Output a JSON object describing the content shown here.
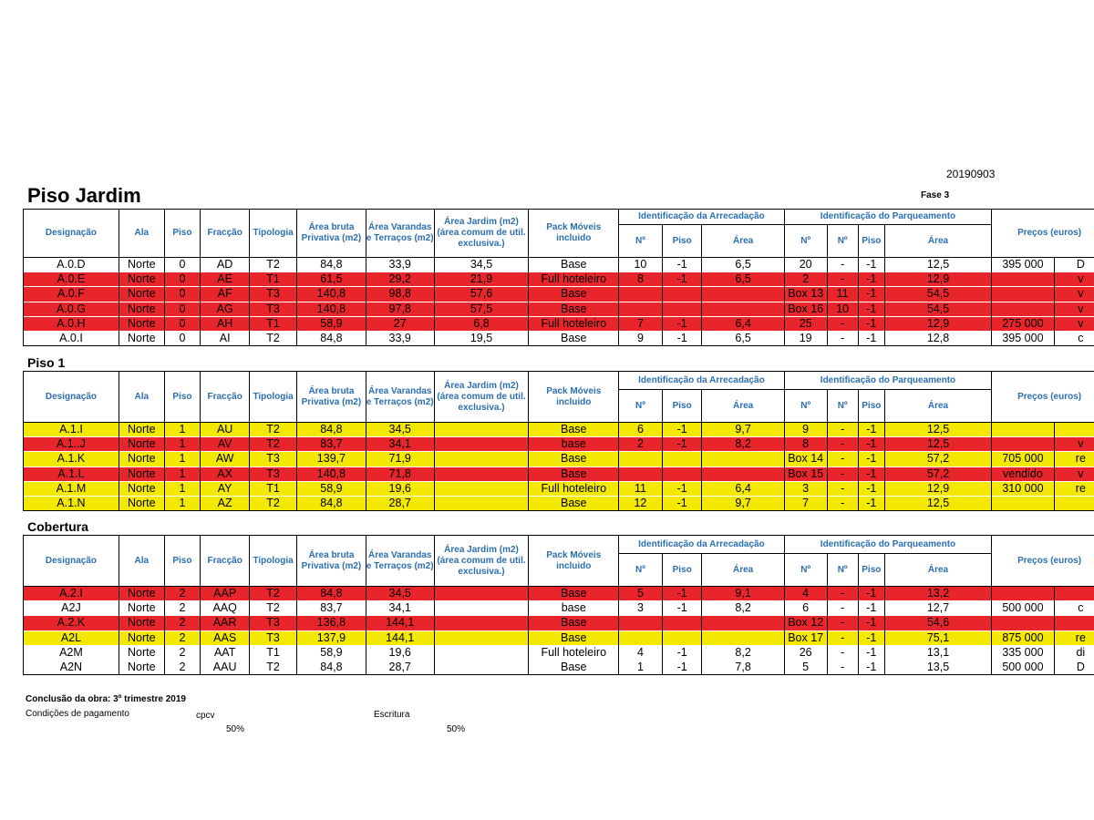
{
  "header": {
    "date": "20190903",
    "phase": "Fase 3"
  },
  "columns": {
    "designacao": "Designação",
    "ala": "Ala",
    "piso": "Piso",
    "fraccao": "Fracção",
    "tipologia": "Tipologia",
    "area_bruta": "Área bruta Privativa (m2)",
    "area_varandas": "Área Varandas e Terraços (m2)",
    "area_jardim": "Área Jardim (m2) (área comum de util. exclusiva.)",
    "pack": "Pack Móveis incluido",
    "arrecadacao_group": "Identificação da Arrecadação",
    "parqueamento_group": "Identificação do Parqueamento",
    "no": "Nº",
    "piso_sub": "Piso",
    "area": "Área",
    "precos": "Preços (euros)"
  },
  "sections": [
    {
      "title": "Piso Jardim",
      "rows": [
        {
          "color": "white",
          "designacao": "A.0.D",
          "ala": "Norte",
          "piso": "0",
          "fraccao": "AD",
          "tipologia": "T2",
          "area_bruta": "84,8",
          "area_varandas": "33,9",
          "area_jardim": "34,5",
          "pack": "Base",
          "arr_no": "10",
          "arr_piso": "-1",
          "arr_area": "6,5",
          "park_no": "20",
          "park_no2": "-",
          "park_piso": "-1",
          "park_area": "12,5",
          "preco": "395 000",
          "obs": "D"
        },
        {
          "color": "red",
          "designacao": "A.0.E",
          "ala": "Norte",
          "piso": "0",
          "fraccao": "AE",
          "tipologia": "T1",
          "area_bruta": "61,5",
          "area_varandas": "29,2",
          "area_jardim": "21,9",
          "pack": "Full hoteleiro",
          "arr_no": "8",
          "arr_piso": "-1",
          "arr_area": "6,5",
          "park_no": "2",
          "park_no2": "-",
          "park_piso": "-1",
          "park_area": "12,9",
          "preco": "",
          "obs": "v"
        },
        {
          "color": "red",
          "designacao": "A.0.F",
          "ala": "Norte",
          "piso": "0",
          "fraccao": "AF",
          "tipologia": "T3",
          "area_bruta": "140,8",
          "area_varandas": "98,8",
          "area_jardim": "57,6",
          "pack": "Base",
          "arr_no": "",
          "arr_piso": "",
          "arr_area": "",
          "park_no": "Box 13",
          "park_no2": "11",
          "park_piso": "-1",
          "park_area": "54,5",
          "preco": "",
          "obs": "v"
        },
        {
          "color": "red",
          "designacao": "A.0.G",
          "ala": "Norte",
          "piso": "0",
          "fraccao": "AG",
          "tipologia": "T3",
          "area_bruta": "140,8",
          "area_varandas": "97,8",
          "area_jardim": "57,5",
          "pack": "Base",
          "arr_no": "",
          "arr_piso": "",
          "arr_area": "",
          "park_no": "Box 16",
          "park_no2": "10",
          "park_piso": "-1",
          "park_area": "54,5",
          "preco": "",
          "obs": "v"
        },
        {
          "color": "red",
          "designacao": "A.0.H",
          "ala": "Norte",
          "piso": "0",
          "fraccao": "AH",
          "tipologia": "T1",
          "area_bruta": "58,9",
          "area_varandas": "27",
          "area_jardim": "6,8",
          "pack": "Full hoteleiro",
          "arr_no": "7",
          "arr_piso": "-1",
          "arr_area": "6,4",
          "park_no": "25",
          "park_no2": "-",
          "park_piso": "-1",
          "park_area": "12,9",
          "preco": "275 000",
          "obs": "v"
        },
        {
          "color": "white",
          "designacao": "A.0.I",
          "ala": "Norte",
          "piso": "0",
          "fraccao": "AI",
          "tipologia": "T2",
          "area_bruta": "84,8",
          "area_varandas": "33,9",
          "area_jardim": "19,5",
          "pack": "Base",
          "arr_no": "9",
          "arr_piso": "-1",
          "arr_area": "6,5",
          "park_no": "19",
          "park_no2": "-",
          "park_piso": "-1",
          "park_area": "12,8",
          "preco": "395 000",
          "obs": "c"
        }
      ]
    },
    {
      "title": "Piso 1",
      "rows": [
        {
          "color": "yellow",
          "designacao": "A.1.I",
          "ala": "Norte",
          "piso": "1",
          "fraccao": "AU",
          "tipologia": "T2",
          "area_bruta": "84,8",
          "area_varandas": "34,5",
          "area_jardim": "",
          "pack": "Base",
          "arr_no": "6",
          "arr_piso": "-1",
          "arr_area": "9,7",
          "park_no": "9",
          "park_no2": "-",
          "park_piso": "-1",
          "park_area": "12,5",
          "preco": "",
          "obs": ""
        },
        {
          "color": "red",
          "designacao": "A.1..J",
          "ala": "Norte",
          "piso": "1",
          "fraccao": "AV",
          "tipologia": "T2",
          "area_bruta": "83,7",
          "area_varandas": "34,1",
          "area_jardim": "",
          "pack": "base",
          "arr_no": "2",
          "arr_piso": "-1",
          "arr_area": "8,2",
          "park_no": "8",
          "park_no2": "-",
          "park_piso": "-1",
          "park_area": "12,5",
          "preco": "",
          "obs": "v"
        },
        {
          "color": "yellow",
          "designacao": "A.1.K",
          "ala": "Norte",
          "piso": "1",
          "fraccao": "AW",
          "tipologia": "T3",
          "area_bruta": "139,7",
          "area_varandas": "71,9",
          "area_jardim": "",
          "pack": "Base",
          "arr_no": "",
          "arr_piso": "",
          "arr_area": "",
          "park_no": "Box 14",
          "park_no2": "-",
          "park_piso": "-1",
          "park_area": "57,2",
          "preco": "705 000",
          "obs": "re"
        },
        {
          "color": "red",
          "designacao": "A.1.L",
          "ala": "Norte",
          "piso": "1",
          "fraccao": "AX",
          "tipologia": "T3",
          "area_bruta": "140,8",
          "area_varandas": "71,8",
          "area_jardim": "",
          "pack": "Base",
          "arr_no": "",
          "arr_piso": "",
          "arr_area": "",
          "park_no": "Box 15",
          "park_no2": "-",
          "park_piso": "-1",
          "park_area": "57,2",
          "preco": "vendido",
          "obs": "v"
        },
        {
          "color": "yellow",
          "designacao": "A.1.M",
          "ala": "Norte",
          "piso": "1",
          "fraccao": "AY",
          "tipologia": "T1",
          "area_bruta": "58,9",
          "area_varandas": "19,6",
          "area_jardim": "",
          "pack": "Full hoteleiro",
          "arr_no": "11",
          "arr_piso": "-1",
          "arr_area": "6,4",
          "park_no": "3",
          "park_no2": "-",
          "park_piso": "-1",
          "park_area": "12,9",
          "preco": "310 000",
          "obs": "re"
        },
        {
          "color": "yellow",
          "designacao": "A.1.N",
          "ala": "Norte",
          "piso": "1",
          "fraccao": "AZ",
          "tipologia": "T2",
          "area_bruta": "84,8",
          "area_varandas": "28,7",
          "area_jardim": "",
          "pack": "Base",
          "arr_no": "12",
          "arr_piso": "-1",
          "arr_area": "9,7",
          "park_no": "7",
          "park_no2": "-",
          "park_piso": "-1",
          "park_area": "12,5",
          "preco": "",
          "obs": ""
        }
      ]
    },
    {
      "title": "Cobertura",
      "rows": [
        {
          "color": "red",
          "designacao": "A.2.I",
          "ala": "Norte",
          "piso": "2",
          "fraccao": "AAP",
          "tipologia": "T2",
          "area_bruta": "84,8",
          "area_varandas": "34,5",
          "area_jardim": "",
          "pack": "Base",
          "arr_no": "5",
          "arr_piso": "-1",
          "arr_area": "9,1",
          "park_no": "4",
          "park_no2": "-",
          "park_piso": "-1",
          "park_area": "13,2",
          "preco": "",
          "obs": ""
        },
        {
          "color": "white",
          "designacao": "A2J",
          "ala": "Norte",
          "piso": "2",
          "fraccao": "AAQ",
          "tipologia": "T2",
          "area_bruta": "83,7",
          "area_varandas": "34,1",
          "area_jardim": "",
          "pack": "base",
          "arr_no": "3",
          "arr_piso": "-1",
          "arr_area": "8,2",
          "park_no": "6",
          "park_no2": "-",
          "park_piso": "-1",
          "park_area": "12,7",
          "preco": "500 000",
          "obs": "c"
        },
        {
          "color": "red",
          "designacao": "A.2.K",
          "ala": "Norte",
          "piso": "2",
          "fraccao": "AAR",
          "tipologia": "T3",
          "area_bruta": "136,8",
          "area_varandas": "144,1",
          "area_jardim": "",
          "pack": "Base",
          "arr_no": "",
          "arr_piso": "",
          "arr_area": "",
          "park_no": "Box 12",
          "park_no2": "-",
          "park_piso": "-1",
          "park_area": "54,6",
          "preco": "",
          "obs": ""
        },
        {
          "color": "yellow",
          "designacao": "A2L",
          "ala": "Norte",
          "piso": "2",
          "fraccao": "AAS",
          "tipologia": "T3",
          "area_bruta": "137,9",
          "area_varandas": "144,1",
          "area_jardim": "",
          "pack": "Base",
          "arr_no": "",
          "arr_piso": "",
          "arr_area": "",
          "park_no": "Box 17",
          "park_no2": "-",
          "park_piso": "-1",
          "park_area": "75,1",
          "preco": "875 000",
          "obs": "re"
        },
        {
          "color": "white",
          "designacao": "A2M",
          "ala": "Norte",
          "piso": "2",
          "fraccao": "AAT",
          "tipologia": "T1",
          "area_bruta": "58,9",
          "area_varandas": "19,6",
          "area_jardim": "",
          "pack": "Full hoteleiro",
          "arr_no": "4",
          "arr_piso": "-1",
          "arr_area": "8,2",
          "park_no": "26",
          "park_no2": "-",
          "park_piso": "-1",
          "park_area": "13,1",
          "preco": "335 000",
          "obs": "di"
        },
        {
          "color": "white",
          "designacao": "A2N",
          "ala": "Norte",
          "piso": "2",
          "fraccao": "AAU",
          "tipologia": "T2",
          "area_bruta": "84,8",
          "area_varandas": "28,7",
          "area_jardim": "",
          "pack": "Base",
          "arr_no": "1",
          "arr_piso": "-1",
          "arr_area": "7,8",
          "park_no": "5",
          "park_no2": "-",
          "park_piso": "-1",
          "park_area": "13,5",
          "preco": "500 000",
          "obs": "D"
        }
      ]
    }
  ],
  "footer": {
    "conclusao": "Conclusão da obra: 3º trimestre 2019",
    "condicoes": "Condições de pagamento",
    "cpcv": "cpcv",
    "escritura": "Escritura",
    "cpcv_pct": "50%",
    "escritura_pct": "50%"
  }
}
